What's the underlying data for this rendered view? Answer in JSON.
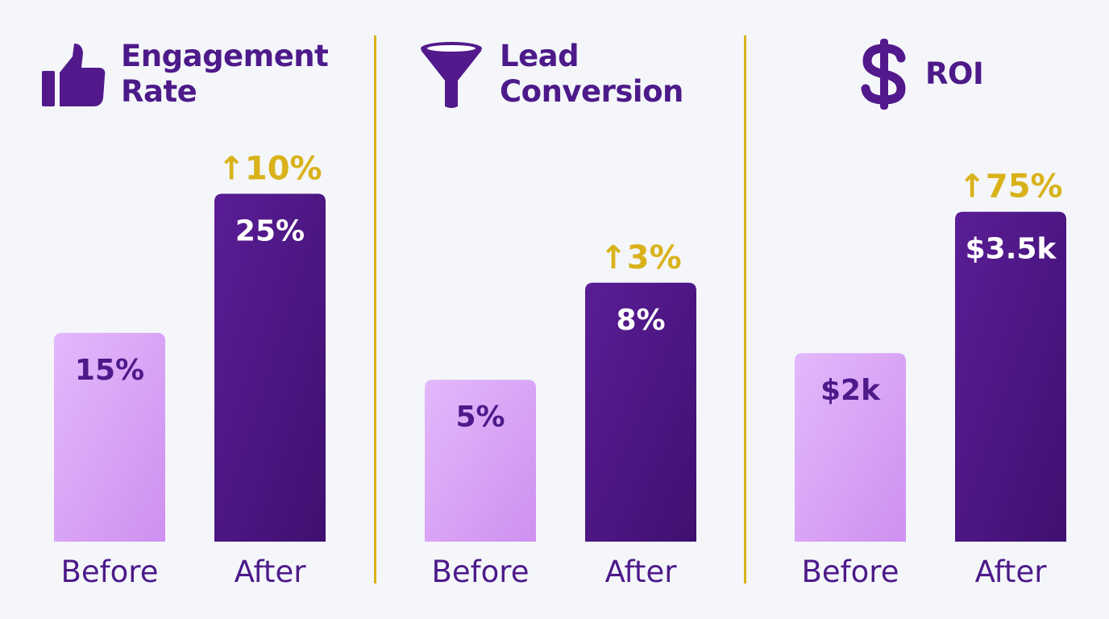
{
  "colors": {
    "before": "#dcaaf6",
    "after": "#52198c",
    "accent": "#d9b21b",
    "title": "#4d1a8a"
  },
  "chart_data": [
    {
      "type": "bar",
      "title": "Engagement Rate",
      "title_lines": [
        "Engagement",
        "Rate"
      ],
      "icon": "thumbs-up-icon",
      "categories": [
        "Before",
        "After"
      ],
      "values": [
        15,
        25
      ],
      "value_labels": [
        "15%",
        "25%"
      ],
      "delta_label": "↑10%",
      "ylim": [
        0,
        30
      ]
    },
    {
      "type": "bar",
      "title": "Lead Conversion",
      "title_lines": [
        "Lead",
        "Conversion"
      ],
      "icon": "funnel-icon",
      "categories": [
        "Before",
        "After"
      ],
      "values": [
        5,
        8
      ],
      "value_labels": [
        "5%",
        "8%"
      ],
      "delta_label": "↑3%",
      "ylim": [
        0,
        12.9
      ]
    },
    {
      "type": "bar",
      "title": "ROI",
      "title_lines": [
        "ROI"
      ],
      "icon": "dollar-icon",
      "categories": [
        "Before",
        "After"
      ],
      "values": [
        2,
        3.5
      ],
      "value_labels": [
        "$2k",
        "$3.5k"
      ],
      "delta_label": "↑75%",
      "ylim": [
        0,
        4.43
      ]
    }
  ]
}
